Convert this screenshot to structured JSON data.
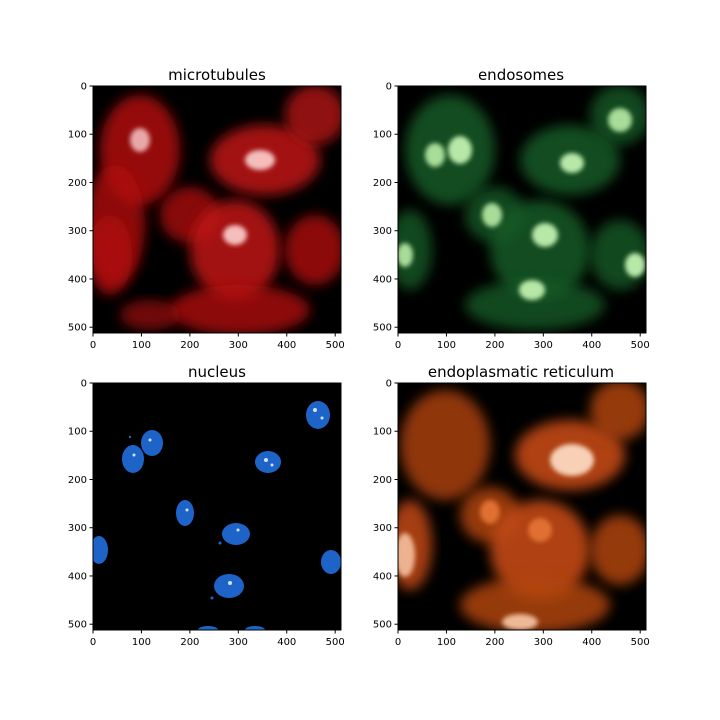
{
  "figure": {
    "panels": [
      {
        "id": "microtubules",
        "title": "microtubules",
        "color": "#d11a1a",
        "highlight": "#ffffff",
        "x_ticks": [
          "0",
          "100",
          "200",
          "300",
          "400",
          "500"
        ],
        "y_ticks": [
          "0",
          "100",
          "200",
          "300",
          "400",
          "500"
        ]
      },
      {
        "id": "endosomes",
        "title": "endosomes",
        "color": "#1e7a34",
        "highlight": "#d9f2c9",
        "x_ticks": [
          "0",
          "100",
          "200",
          "300",
          "400",
          "500"
        ],
        "y_ticks": [
          "0",
          "100",
          "200",
          "300",
          "400",
          "500"
        ]
      },
      {
        "id": "nucleus",
        "title": "nucleus",
        "color": "#1e64c8",
        "highlight": "#cfe3ff",
        "x_ticks": [
          "0",
          "100",
          "200",
          "300",
          "400",
          "500"
        ],
        "y_ticks": [
          "0",
          "100",
          "200",
          "300",
          "400",
          "500"
        ]
      },
      {
        "id": "endoplasmatic-reticulum",
        "title": "endoplasmatic reticulum",
        "color": "#d6561a",
        "highlight": "#ffe0c8",
        "x_ticks": [
          "0",
          "100",
          "200",
          "300",
          "400",
          "500"
        ],
        "y_ticks": [
          "0",
          "100",
          "200",
          "300",
          "400",
          "500"
        ]
      }
    ],
    "image_extent": [
      0,
      512
    ],
    "background": "#000000"
  }
}
